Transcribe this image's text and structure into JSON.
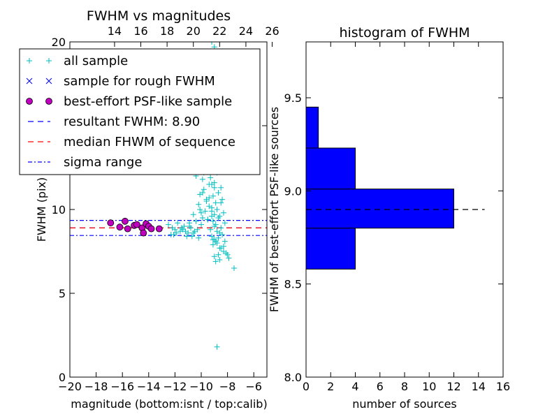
{
  "figure": {
    "background": "#ffffff"
  },
  "chart_data": [
    {
      "type": "scatter",
      "title": "FWHM vs magnitudes",
      "xlabel": "magnitude (bottom:isnt / top:calib)",
      "ylabel": "FWHM (pix)",
      "xlim": [
        -20,
        -5
      ],
      "ylim": [
        0,
        20
      ],
      "x_ticks": [
        -20,
        -18,
        -16,
        -14,
        -12,
        -10,
        -8,
        -6
      ],
      "x_tick_labels": [
        "−20",
        "−18",
        "−16",
        "−14",
        "−12",
        "−10",
        "−8",
        "−6"
      ],
      "y_ticks": [
        0,
        5,
        10,
        15,
        20
      ],
      "y_tick_labels": [
        "0",
        "5",
        "10",
        "15",
        "20"
      ],
      "top_axis": {
        "offset": 30.6,
        "ticks": [
          14,
          16,
          18,
          20,
          22,
          24,
          26
        ],
        "tick_labels": [
          "14",
          "16",
          "18",
          "20",
          "22",
          "24",
          "26"
        ]
      },
      "grid": false,
      "legend_position": "upper-left",
      "legend": [
        {
          "label": "all sample",
          "marker": "plus",
          "color": "#00bfbf"
        },
        {
          "label": "sample for rough FWHM",
          "marker": "x",
          "color": "#0000ff"
        },
        {
          "label": "best-effort PSF-like sample",
          "marker": "circle",
          "color": "#bf00bf"
        },
        {
          "label": "resultant FWHM: 8.90",
          "marker": "dash",
          "color": "#0000ff"
        },
        {
          "label": "median FHWM of sequence",
          "marker": "dash",
          "color": "#ff0000"
        },
        {
          "label": "sigma range",
          "marker": "dashdot",
          "color": "#0000ff"
        }
      ],
      "hlines": [
        {
          "name": "resultant FWHM",
          "y": 8.9,
          "style": "dashed",
          "color": "#0000ff"
        },
        {
          "name": "median FHWM of sequence",
          "y": 8.9,
          "style": "dashed",
          "color": "#ff0000"
        },
        {
          "name": "sigma upper",
          "y": 9.35,
          "style": "dashdot",
          "color": "#0000ff"
        },
        {
          "name": "sigma lower",
          "y": 8.45,
          "style": "dashdot",
          "color": "#0000ff"
        }
      ],
      "series": [
        {
          "name": "all sample",
          "marker": "plus",
          "color": "#00bfbf",
          "x": [
            -9.2,
            -9.0,
            -8.5,
            -9.5,
            -8.8,
            -8.6,
            -9.3,
            -8.2,
            -8.9,
            -9.1,
            -9.4,
            -8.7,
            -8.3,
            -9.6,
            -9.8,
            -8.1,
            -8.4,
            -9.0,
            -8.9,
            -9.2,
            -8.6,
            -8.8,
            -9.3,
            -9.0,
            -8.5,
            -8.7,
            -9.1,
            -8.4,
            -8.9,
            -9.4,
            -8.8,
            -9.2,
            -8.3,
            -9.0,
            -8.6,
            -8.7,
            -9.5,
            -9.1,
            -8.2,
            -8.9,
            -9.0,
            -8.5,
            -9.3,
            -8.8,
            -8.6,
            -8.4,
            -9.2,
            -8.7,
            -9.0,
            -8.9,
            -8.8,
            -9.1,
            -8.5,
            -8.3,
            -8.7,
            -9.0,
            -8.6,
            -8.9,
            -8.4,
            -9.2,
            -10.0,
            -10.3,
            -10.6,
            -10.9,
            -11.2,
            -11.5,
            -11.8,
            -12.1,
            -10.2,
            -10.7,
            -11.0,
            -11.4,
            -10.4,
            -10.8,
            -11.6,
            -12.3,
            -10.1,
            -11.3,
            -12.0,
            -12.5,
            -10.5,
            -11.1,
            -9.9,
            -10.6,
            -11.9,
            -12.2,
            -10.9,
            -9.7,
            -10.0,
            -10.4,
            -9.8,
            -9.6,
            -10.2,
            -9.9,
            -9.5,
            -10.1,
            -9.7,
            -9.3,
            -9.6,
            -9.4,
            -9.8,
            -9.5,
            -10.0,
            -9.2,
            -9.9,
            -8.1,
            -8.3,
            -7.9,
            -7.5,
            -8.2,
            -8.0,
            -8.6,
            -9.4,
            -9.0,
            -8.7,
            -9.2,
            -8.5,
            -9.1,
            -8.8
          ],
          "y": [
            20.0,
            19.7,
            19.0,
            18.5,
            18.2,
            17.6,
            17.2,
            16.8,
            16.4,
            16.0,
            15.6,
            15.3,
            15.0,
            14.7,
            14.4,
            14.0,
            13.7,
            13.4,
            13.1,
            12.8,
            12.5,
            12.2,
            11.9,
            11.6,
            11.3,
            11.0,
            10.8,
            10.6,
            10.4,
            10.2,
            10.0,
            9.9,
            9.8,
            9.7,
            9.6,
            9.5,
            9.4,
            9.3,
            9.2,
            9.1,
            9.0,
            8.9,
            8.8,
            8.7,
            8.6,
            8.5,
            8.4,
            8.3,
            8.2,
            8.1,
            8.0,
            7.9,
            7.7,
            7.5,
            7.3,
            7.2,
            7.0,
            6.9,
            12.3,
            11.5,
            9.1,
            8.8,
            8.6,
            9.0,
            8.7,
            8.9,
            9.2,
            8.5,
            8.3,
            8.4,
            8.6,
            8.8,
            9.3,
            8.9,
            8.7,
            8.5,
            10.0,
            9.0,
            8.8,
            9.1,
            8.7,
            8.4,
            9.5,
            9.7,
            8.6,
            8.9,
            9.2,
            13.5,
            12.8,
            12.0,
            11.2,
            10.6,
            10.3,
            11.8,
            12.5,
            10.9,
            9.9,
            13.0,
            10.5,
            11.5,
            12.2,
            9.4,
            9.8,
            10.1,
            11.0,
            7.4,
            7.8,
            7.1,
            6.5,
            8.1,
            7.3,
            7.7,
            10.7,
            11.3,
            12.9,
            9.6,
            10.4,
            8.2,
            1.8
          ]
        },
        {
          "name": "best-effort PSF-like sample",
          "marker": "circle",
          "color": "#bf00bf",
          "x": [
            -16.9,
            -16.2,
            -15.8,
            -15.6,
            -15.1,
            -14.9,
            -14.5,
            -14.4,
            -14.2,
            -14.0,
            -13.8,
            -13.2
          ],
          "y": [
            9.2,
            8.95,
            9.3,
            8.85,
            9.05,
            9.1,
            8.9,
            8.6,
            9.15,
            9.0,
            8.85,
            8.85
          ]
        }
      ]
    },
    {
      "type": "bar",
      "orientation": "horizontal",
      "title": "histogram of FWHM",
      "xlabel": "number of sources",
      "ylabel": "FWHM of best-effort PSF-like sources",
      "xlim": [
        0,
        16
      ],
      "ylim": [
        8.0,
        9.8
      ],
      "x_ticks": [
        0,
        2,
        4,
        6,
        8,
        10,
        12,
        14,
        16
      ],
      "x_tick_labels": [
        "0",
        "2",
        "4",
        "6",
        "8",
        "10",
        "12",
        "14",
        "16"
      ],
      "y_ticks": [
        8.0,
        8.5,
        9.0,
        9.5
      ],
      "y_tick_labels": [
        "8.0",
        "8.5",
        "9.0",
        "9.5"
      ],
      "grid": false,
      "bar_color": "#0000ff",
      "bins": [
        {
          "from": 8.37,
          "to": 8.58,
          "count": 0
        },
        {
          "from": 8.58,
          "to": 8.8,
          "count": 4
        },
        {
          "from": 8.8,
          "to": 9.01,
          "count": 12
        },
        {
          "from": 9.01,
          "to": 9.23,
          "count": 4
        },
        {
          "from": 9.23,
          "to": 9.45,
          "count": 1
        }
      ],
      "hlines": [
        {
          "name": "resultant FWHM",
          "y": 8.9,
          "x_to": 14.5,
          "style": "dashed",
          "color": "#000000"
        }
      ]
    }
  ]
}
